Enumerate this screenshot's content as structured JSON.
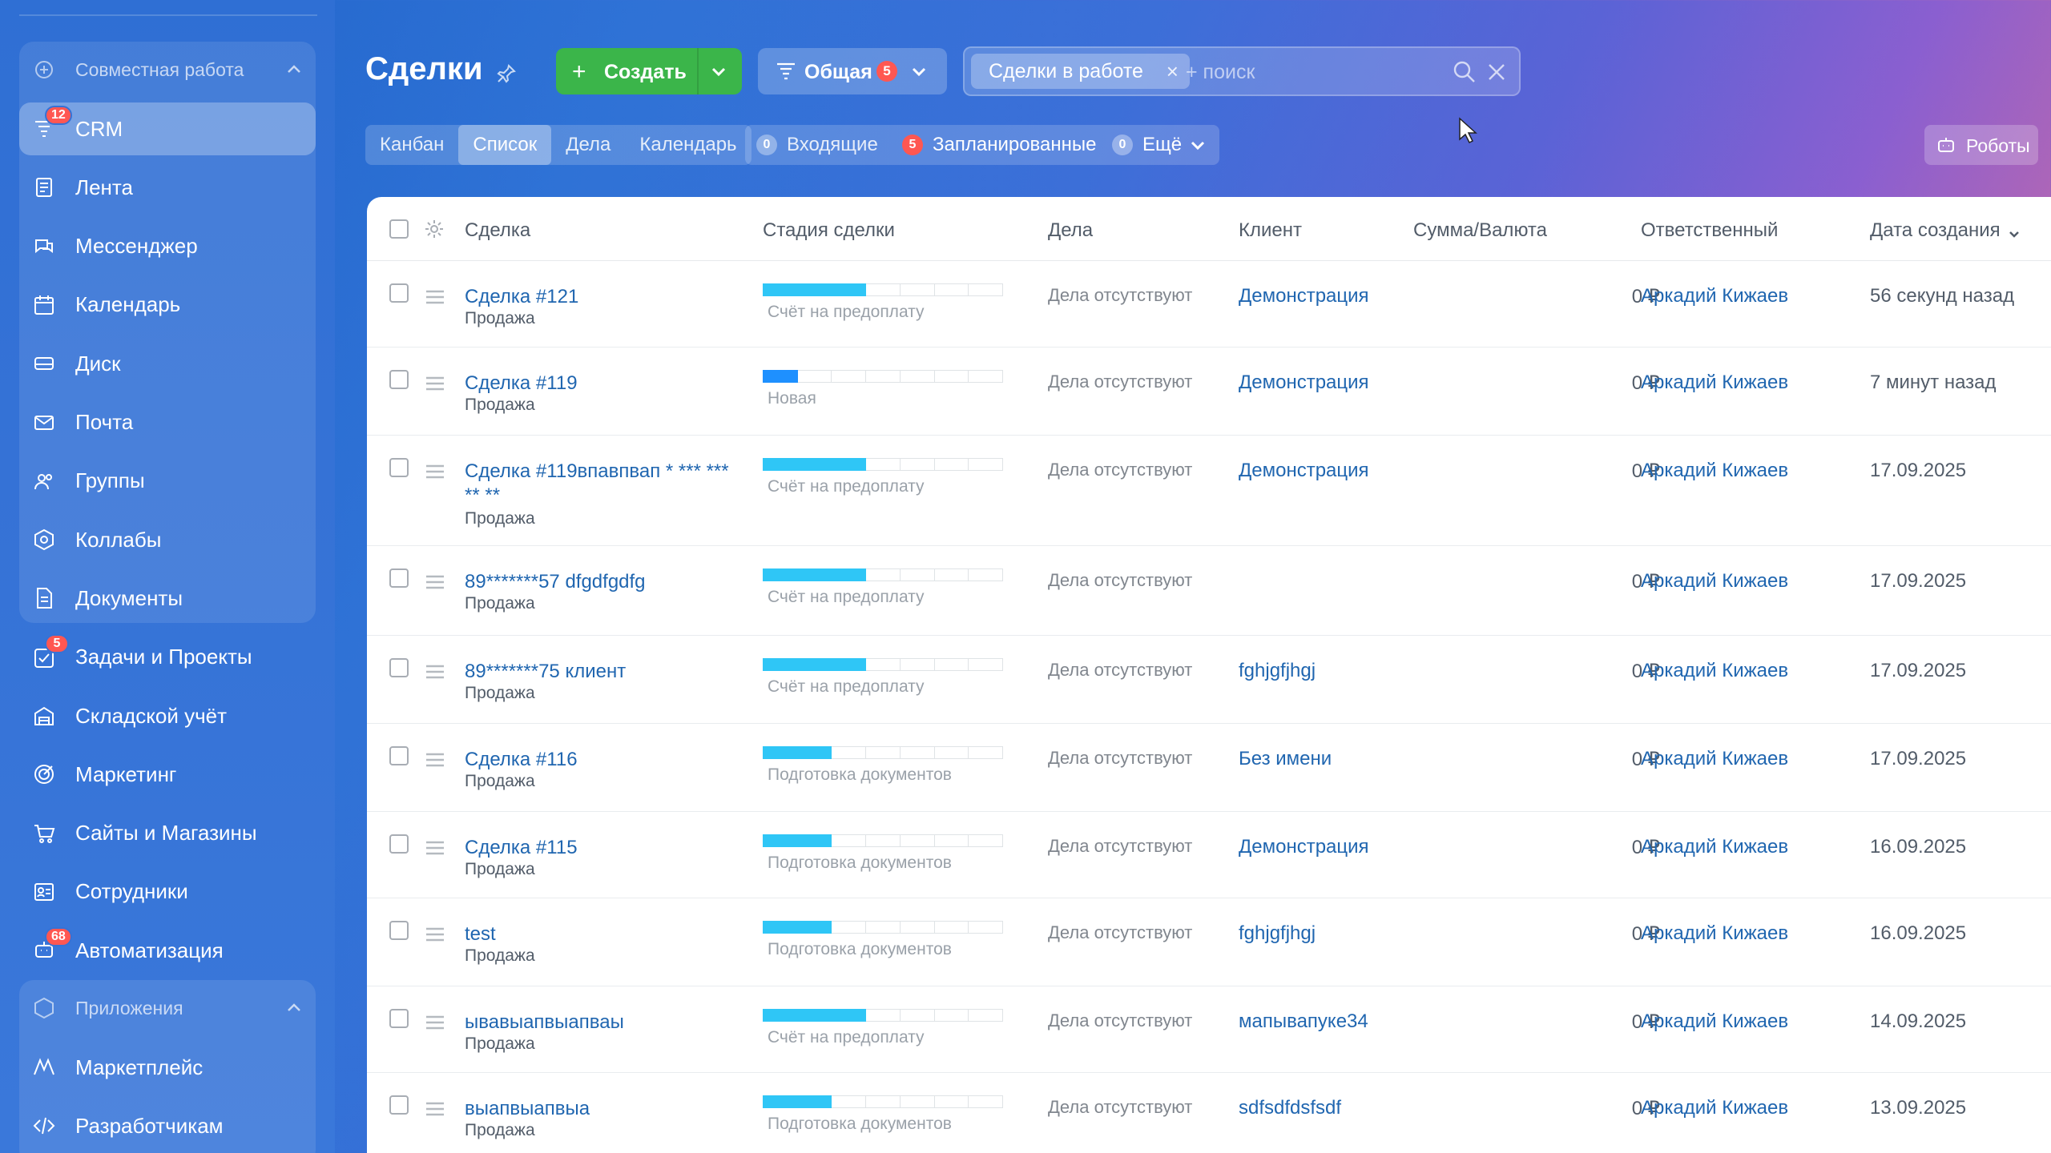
{
  "colors": {
    "accent_green": "#3bb54a",
    "badge_red": "#ff5752",
    "link_blue": "#2066b0",
    "stage_cyan": "#2fc6f6",
    "stage_blue": "#1e90ff"
  },
  "sidebar": {
    "section1_label": "Совместная работа",
    "section2_label": "Приложения",
    "items": [
      {
        "label": "CRM",
        "icon": "crm-funnel-icon",
        "badge": "12",
        "active": true
      },
      {
        "label": "Лента",
        "icon": "feed-icon",
        "badge": ""
      },
      {
        "label": "Мессенджер",
        "icon": "messenger-icon",
        "badge": ""
      },
      {
        "label": "Календарь",
        "icon": "calendar-icon",
        "badge": ""
      },
      {
        "label": "Диск",
        "icon": "disk-icon",
        "badge": ""
      },
      {
        "label": "Почта",
        "icon": "mail-icon",
        "badge": ""
      },
      {
        "label": "Группы",
        "icon": "groups-icon",
        "badge": ""
      },
      {
        "label": "Коллабы",
        "icon": "collabs-icon",
        "badge": ""
      },
      {
        "label": "Документы",
        "icon": "documents-icon",
        "badge": ""
      },
      {
        "label": "Задачи и Проекты",
        "icon": "tasks-icon",
        "badge": "5"
      },
      {
        "label": "Складской учёт",
        "icon": "warehouse-icon",
        "badge": ""
      },
      {
        "label": "Маркетинг",
        "icon": "marketing-icon",
        "badge": ""
      },
      {
        "label": "Сайты и Магазины",
        "icon": "shop-cart-icon",
        "badge": ""
      },
      {
        "label": "Сотрудники",
        "icon": "employees-icon",
        "badge": ""
      },
      {
        "label": "Автоматизация",
        "icon": "automation-icon",
        "badge": "68"
      }
    ],
    "apps": [
      {
        "label": "Маркетплейс",
        "icon": "marketplace-icon"
      },
      {
        "label": "Разработчикам",
        "icon": "code-icon"
      }
    ]
  },
  "header": {
    "title": "Сделки",
    "create_label": "Создать",
    "filter_label": "Общая",
    "filter_count": "5",
    "search_chip": "Сделки в работе",
    "search_placeholder": "+ поиск",
    "robots_label": "Роботы"
  },
  "view_tabs": [
    "Канбан",
    "Список",
    "Дела",
    "Календарь"
  ],
  "active_tab": "Список",
  "counters": {
    "incoming_count": "0",
    "incoming_label": "Входящие",
    "planned_count": "5",
    "planned_label": "Запланированные",
    "more_count": "0",
    "more_label": "Ещё"
  },
  "table": {
    "columns": [
      "Сделка",
      "Стадия сделки",
      "Дела",
      "Клиент",
      "Сумма/Валюта",
      "Ответственный",
      "Дата создания"
    ],
    "rows": [
      {
        "title": "Сделка #121",
        "type": "Продажа",
        "stage": "Счёт на предоплату",
        "stage_level": 3,
        "activities": "Дела отсутствуют",
        "client": "Демонстрация",
        "sum": "0 ₽",
        "responsible": "Аркадий Кижаев",
        "date": "56 секунд назад"
      },
      {
        "title": "Сделка #119",
        "type": "Продажа",
        "stage": "Новая",
        "stage_level": 1,
        "activities": "Дела отсутствуют",
        "client": "Демонстрация",
        "sum": "0 ₽",
        "responsible": "Аркадий Кижаев",
        "date": "7 минут назад"
      },
      {
        "title": "Сделка #119впавпвап * *** *** ** **",
        "type": "Продажа",
        "stage": "Счёт на предоплату",
        "stage_level": 3,
        "activities": "Дела отсутствуют",
        "client": "Демонстрация",
        "sum": "0 ₽",
        "responsible": "Аркадий Кижаев",
        "date": "17.09.2025"
      },
      {
        "title": "89*******57 dfgdfgdfg",
        "type": "Продажа",
        "stage": "Счёт на предоплату",
        "stage_level": 3,
        "activities": "Дела отсутствуют",
        "client": "",
        "sum": "0 ₽",
        "responsible": "Аркадий Кижаев",
        "date": "17.09.2025"
      },
      {
        "title": "89*******75 клиент",
        "type": "Продажа",
        "stage": "Счёт на предоплату",
        "stage_level": 3,
        "activities": "Дела отсутствуют",
        "client": "fghjgfjhgj",
        "sum": "0 ₽",
        "responsible": "Аркадий Кижаев",
        "date": "17.09.2025"
      },
      {
        "title": "Сделка #116",
        "type": "Продажа",
        "stage": "Подготовка документов",
        "stage_level": 2,
        "activities": "Дела отсутствуют",
        "client": "Без имени",
        "sum": "0 ₽",
        "responsible": "Аркадий Кижаев",
        "date": "17.09.2025"
      },
      {
        "title": "Сделка #115",
        "type": "Продажа",
        "stage": "Подготовка документов",
        "stage_level": 2,
        "activities": "Дела отсутствуют",
        "client": "Демонстрация",
        "sum": "0 ₽",
        "responsible": "Аркадий Кижаев",
        "date": "16.09.2025"
      },
      {
        "title": "test",
        "type": "Продажа",
        "stage": "Подготовка документов",
        "stage_level": 2,
        "activities": "Дела отсутствуют",
        "client": "fghjgfjhgj",
        "sum": "0 ₽",
        "responsible": "Аркадий Кижаев",
        "date": "16.09.2025"
      },
      {
        "title": "ывавыапвыапваы",
        "type": "Продажа",
        "stage": "Счёт на предоплату",
        "stage_level": 3,
        "activities": "Дела отсутствуют",
        "client": "мапывапуке34",
        "sum": "0 ₽",
        "responsible": "Аркадий Кижаев",
        "date": "14.09.2025"
      },
      {
        "title": "выапвыапвыа",
        "type": "Продажа",
        "stage": "Подготовка документов",
        "stage_level": 2,
        "activities": "Дела отсутствуют",
        "client": "sdfsdfdsfsdf",
        "sum": "0 ₽",
        "responsible": "Аркадий Кижаев",
        "date": "13.09.2025"
      }
    ]
  }
}
